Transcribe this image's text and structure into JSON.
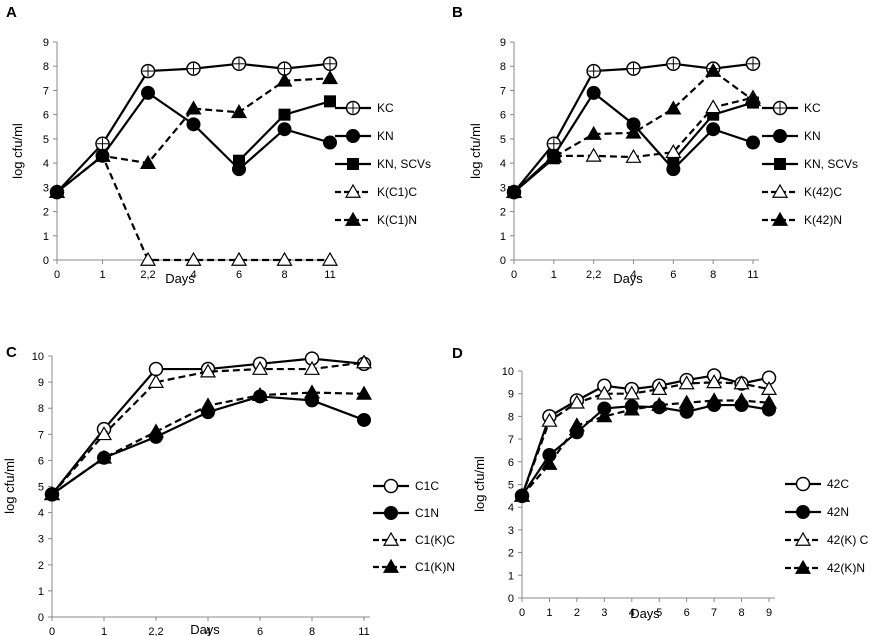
{
  "chart_data": [
    {
      "panel": "A",
      "type": "line",
      "categories": [
        "0",
        "1",
        "2,2",
        "4",
        "6",
        "8",
        "11"
      ],
      "xlabel": "Days",
      "ylabel": "log cfu/ml",
      "ylim": [
        0,
        9
      ],
      "yticks": [
        0,
        1,
        2,
        3,
        4,
        5,
        6,
        7,
        8,
        9
      ],
      "legend_position": "right",
      "series": [
        {
          "name": "KC",
          "marker": "open-circle-cross",
          "dashed": false,
          "values": [
            2.8,
            4.8,
            7.8,
            7.9,
            8.1,
            7.9,
            8.1
          ]
        },
        {
          "name": "KN",
          "marker": "filled-circle",
          "dashed": false,
          "values": [
            2.8,
            4.3,
            6.9,
            5.6,
            3.75,
            5.4,
            4.85
          ]
        },
        {
          "name": "KN, SCVs",
          "marker": "filled-square",
          "dashed": false,
          "values": [
            null,
            null,
            null,
            null,
            4.1,
            6.0,
            6.55
          ]
        },
        {
          "name": "K(C1)C",
          "marker": "open-triangle",
          "dashed": true,
          "values": [
            2.8,
            4.3,
            0,
            0,
            0,
            0,
            0
          ]
        },
        {
          "name": "K(C1)N",
          "marker": "filled-triangle",
          "dashed": true,
          "values": [
            2.8,
            4.3,
            4.0,
            6.25,
            6.1,
            7.4,
            7.5
          ]
        }
      ]
    },
    {
      "panel": "B",
      "type": "line",
      "categories": [
        "0",
        "1",
        "2,2",
        "4",
        "6",
        "8",
        "11"
      ],
      "xlabel": "Days",
      "ylabel": "log cfu/ml",
      "ylim": [
        0,
        9
      ],
      "yticks": [
        0,
        1,
        2,
        3,
        4,
        5,
        6,
        7,
        8,
        9
      ],
      "legend_position": "right",
      "series": [
        {
          "name": "KC",
          "marker": "open-circle-cross",
          "dashed": false,
          "values": [
            2.8,
            4.8,
            7.8,
            7.9,
            8.1,
            7.9,
            8.1
          ]
        },
        {
          "name": "KN",
          "marker": "filled-circle",
          "dashed": false,
          "values": [
            2.8,
            4.3,
            6.9,
            5.6,
            3.75,
            5.4,
            4.85
          ]
        },
        {
          "name": "KN, SCVs",
          "marker": "filled-square",
          "dashed": false,
          "values": [
            2.8,
            4.2,
            null,
            null,
            4.1,
            6.0,
            6.5
          ]
        },
        {
          "name": "K(42)C",
          "marker": "open-triangle",
          "dashed": true,
          "values": [
            2.8,
            4.3,
            4.3,
            4.25,
            4.45,
            6.3,
            6.7
          ]
        },
        {
          "name": "K(42)N",
          "marker": "filled-triangle",
          "dashed": true,
          "values": [
            2.8,
            4.25,
            5.2,
            5.25,
            6.25,
            7.8,
            6.6
          ]
        }
      ]
    },
    {
      "panel": "C",
      "type": "line",
      "categories": [
        "0",
        "1",
        "2,2",
        "4",
        "6",
        "8",
        "11"
      ],
      "xlabel": "Days",
      "ylabel": "log cfu/ml",
      "ylim": [
        0,
        10
      ],
      "yticks": [
        0,
        1,
        2,
        3,
        4,
        5,
        6,
        7,
        8,
        9,
        10
      ],
      "legend_position": "right",
      "series": [
        {
          "name": "C1C",
          "marker": "open-circle",
          "dashed": false,
          "values": [
            4.7,
            7.2,
            9.5,
            9.5,
            9.7,
            9.9,
            9.7
          ]
        },
        {
          "name": "C1N",
          "marker": "filled-circle",
          "dashed": false,
          "values": [
            4.7,
            6.1,
            6.9,
            7.85,
            8.45,
            8.3,
            7.55
          ]
        },
        {
          "name": "C1(K)C",
          "marker": "open-triangle",
          "dashed": true,
          "values": [
            4.7,
            7.0,
            9.0,
            9.4,
            9.5,
            9.5,
            9.75
          ]
        },
        {
          "name": "C1(K)N",
          "marker": "filled-triangle",
          "dashed": true,
          "values": [
            4.7,
            6.1,
            7.1,
            8.1,
            8.5,
            8.6,
            8.55
          ]
        }
      ]
    },
    {
      "panel": "D",
      "type": "line",
      "categories": [
        "0",
        "1",
        "2",
        "3",
        "4",
        "5",
        "6",
        "7",
        "8",
        "9"
      ],
      "xlabel": "Days",
      "ylabel": "log cfu/ml",
      "ylim": [
        0,
        10
      ],
      "yticks": [
        0,
        1,
        2,
        3,
        4,
        5,
        6,
        7,
        8,
        9,
        10
      ],
      "legend_position": "right",
      "series": [
        {
          "name": "42C",
          "marker": "open-circle",
          "dashed": false,
          "values": [
            4.5,
            8.0,
            8.7,
            9.35,
            9.2,
            9.35,
            9.6,
            9.8,
            9.45,
            9.7
          ]
        },
        {
          "name": "42N",
          "marker": "filled-circle",
          "dashed": false,
          "values": [
            4.5,
            6.3,
            7.3,
            8.35,
            8.45,
            8.4,
            8.2,
            8.5,
            8.5,
            8.3
          ]
        },
        {
          "name": "42(K) C",
          "marker": "open-triangle",
          "dashed": true,
          "values": [
            4.5,
            7.8,
            8.6,
            9.0,
            9.0,
            9.2,
            9.45,
            9.5,
            9.45,
            9.2
          ]
        },
        {
          "name": "42(K)N",
          "marker": "filled-triangle",
          "dashed": true,
          "values": [
            4.5,
            5.9,
            7.6,
            8.0,
            8.3,
            8.5,
            8.6,
            8.7,
            8.7,
            8.6
          ]
        }
      ]
    }
  ]
}
